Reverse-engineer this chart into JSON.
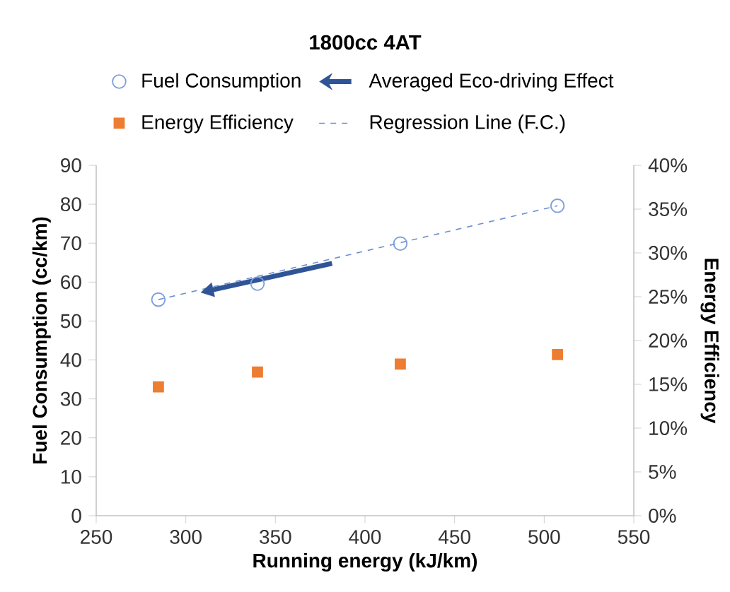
{
  "chart_data": {
    "type": "scatter",
    "title": "1800cc 4AT",
    "xlabel": "Running energy (kJ/km)",
    "ylabel": "Fuel Consumption (cc/km)",
    "y2label": "Energy Efficiency",
    "xlim": [
      250,
      550
    ],
    "xticks": [
      250,
      300,
      350,
      400,
      450,
      500,
      550
    ],
    "ylim": [
      0,
      90
    ],
    "yticks": [
      0,
      10,
      20,
      30,
      40,
      50,
      60,
      70,
      80,
      90
    ],
    "y2lim": [
      0,
      40
    ],
    "y2ticks": [
      {
        "value": 0,
        "label": "0%"
      },
      {
        "value": 5,
        "label": "5%"
      },
      {
        "value": 10,
        "label": "10%"
      },
      {
        "value": 15,
        "label": "15%"
      },
      {
        "value": 20,
        "label": "20%"
      },
      {
        "value": 25,
        "label": "25%"
      },
      {
        "value": 30,
        "label": "30%"
      },
      {
        "value": 35,
        "label": "35%"
      },
      {
        "value": 40,
        "label": "40%"
      }
    ],
    "legend": "top",
    "grid": false,
    "series": [
      {
        "name": "Fuel Consumption",
        "type": "scatter",
        "marker": "circle",
        "color": "#7f9fdc",
        "x": [
          284.7,
          340,
          419.7,
          507.4
        ],
        "values": [
          55.5,
          59.6,
          69.9,
          79.6
        ]
      },
      {
        "name": "Averaged Eco-driving Effect",
        "type": "line",
        "line_style": "solid",
        "marker": "triangle",
        "color": "#2f5597",
        "x": [
          381.6,
          313
        ],
        "values": [
          64.8,
          57.8
        ]
      },
      {
        "name": "Energy Efficiency",
        "type": "scatter",
        "marker": "square",
        "axis": "y2",
        "color": "#ed7d31",
        "x": [
          284.7,
          340,
          419.7,
          507.4
        ],
        "values": [
          14.7,
          16.4,
          17.3,
          18.4
        ]
      },
      {
        "name": "Regression Line (F.C.)",
        "type": "line",
        "line_style": "dashed",
        "marker": "none",
        "color": "#6f8fd0",
        "x": [
          284.7,
          507.4
        ],
        "values": [
          55.5,
          79.6
        ]
      }
    ]
  }
}
